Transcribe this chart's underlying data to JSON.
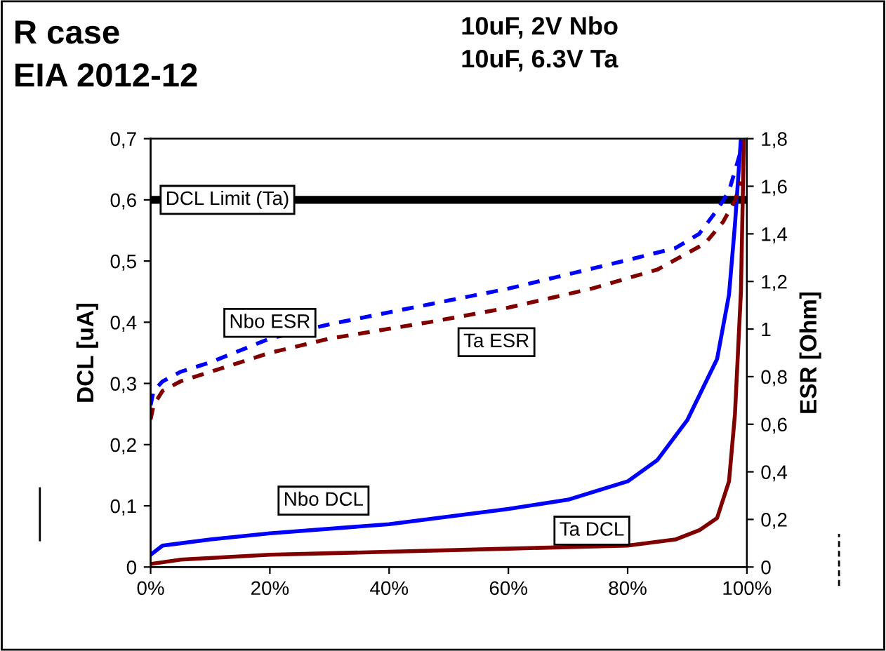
{
  "chart_data": {
    "type": "line",
    "title": "R case\nEIA 2012-12",
    "subtitle": "10uF, 2V Nbo\n10uF, 6.3V Ta",
    "ylabel": "DCL [uA]",
    "y2label": "ESR [Ohm]",
    "xlim": [
      0,
      100
    ],
    "xticks": [
      {
        "value": 0,
        "label": "0%"
      },
      {
        "value": 20,
        "label": "20%"
      },
      {
        "value": 40,
        "label": "40%"
      },
      {
        "value": 60,
        "label": "60%"
      },
      {
        "value": 80,
        "label": "80%"
      },
      {
        "value": 100,
        "label": "100%"
      }
    ],
    "ylim": [
      0,
      0.7
    ],
    "yticks": [
      0,
      {
        "value": 0.1,
        "label": "0,1"
      },
      {
        "value": 0.2,
        "label": "0,2"
      },
      {
        "value": 0.3,
        "label": "0,3"
      },
      {
        "value": 0.4,
        "label": "0,4"
      },
      {
        "value": 0.5,
        "label": "0,5"
      },
      {
        "value": 0.6,
        "label": "0,6"
      },
      {
        "value": 0.7,
        "label": "0,7"
      }
    ],
    "y2lim": [
      0,
      1.8
    ],
    "y2ticks": [
      0,
      {
        "value": 0.2,
        "label": "0,2"
      },
      {
        "value": 0.4,
        "label": "0,4"
      },
      {
        "value": 0.6,
        "label": "0,6"
      },
      {
        "value": 0.8,
        "label": "0,8"
      },
      1,
      {
        "value": 1.2,
        "label": "1,2"
      },
      {
        "value": 1.4,
        "label": "1,4"
      },
      {
        "value": 1.6,
        "label": "1,6"
      },
      {
        "value": 1.8,
        "label": "1,8"
      }
    ],
    "grid": false,
    "legend": false,
    "marker": "none",
    "series": [
      {
        "name": "Nbo DCL",
        "color": "#0000ff",
        "line_style": "solid",
        "x": [
          0,
          2,
          10,
          20,
          40,
          60,
          70,
          80,
          85,
          90,
          95,
          97,
          98,
          99
        ],
        "values": [
          0.02,
          0.035,
          0.045,
          0.055,
          0.07,
          0.095,
          0.11,
          0.14,
          0.175,
          0.24,
          0.34,
          0.445,
          0.56,
          0.7
        ]
      },
      {
        "name": "Ta DCL",
        "color": "#800000",
        "line_style": "solid",
        "x": [
          0,
          5,
          20,
          40,
          60,
          80,
          88,
          92,
          95,
          97,
          98,
          99,
          99.5
        ],
        "values": [
          0.005,
          0.012,
          0.02,
          0.025,
          0.03,
          0.035,
          0.045,
          0.06,
          0.08,
          0.14,
          0.25,
          0.45,
          0.7
        ]
      },
      {
        "name": "Nbo ESR",
        "color": "#0000ff",
        "line_style": "dashed",
        "axis": "y2",
        "x": [
          0,
          0.5,
          2,
          5,
          10,
          20,
          30,
          40,
          50,
          60,
          70,
          80,
          88,
          92,
          95,
          97,
          99
        ],
        "values": [
          0.68,
          0.74,
          0.78,
          0.82,
          0.86,
          0.96,
          1.02,
          1.07,
          1.12,
          1.17,
          1.23,
          1.29,
          1.34,
          1.4,
          1.5,
          1.58,
          1.75
        ]
      },
      {
        "name": "Ta ESR",
        "color": "#800000",
        "line_style": "dashed",
        "axis": "y2",
        "x": [
          0,
          0.5,
          2,
          5,
          10,
          20,
          30,
          47,
          60,
          74,
          85,
          93,
          96,
          98,
          99
        ],
        "values": [
          0.62,
          0.68,
          0.74,
          0.78,
          0.82,
          0.9,
          0.96,
          1.03,
          1.09,
          1.17,
          1.25,
          1.36,
          1.45,
          1.54,
          1.62
        ]
      }
    ],
    "ref_lines": [
      {
        "axis": "y",
        "value": 0.6,
        "label": "DCL Limit (Ta)",
        "color": "#000000",
        "line_style": "solid"
      }
    ]
  }
}
